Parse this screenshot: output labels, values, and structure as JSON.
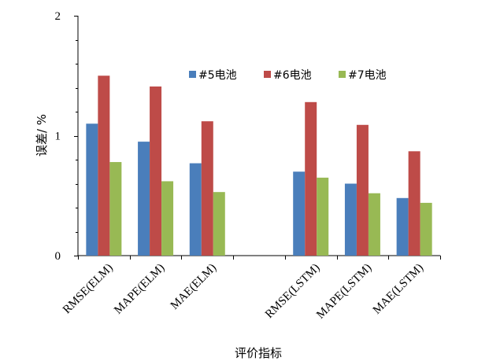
{
  "chart_data": {
    "type": "bar",
    "categories": [
      "RMSE(ELM)",
      "MAPE(ELM)",
      "MAE(ELM)",
      "",
      "RMSE(LSTM)",
      "MAPE(LSTM)",
      "MAE(LSTM)"
    ],
    "series": [
      {
        "name": "#5电池",
        "color": "#4a7ebb",
        "values": [
          1.1,
          0.95,
          0.77,
          null,
          0.7,
          0.6,
          0.48
        ]
      },
      {
        "name": "#6电池",
        "color": "#be4b48",
        "values": [
          1.5,
          1.41,
          1.12,
          null,
          1.28,
          1.09,
          0.87
        ]
      },
      {
        "name": "#7电池",
        "color": "#98b954",
        "values": [
          0.78,
          0.62,
          0.53,
          null,
          0.65,
          0.52,
          0.44
        ]
      }
    ],
    "xlabel": "评价指标",
    "ylabel": "误差/ %",
    "ylim": [
      0,
      2
    ],
    "yticks": [
      0,
      1,
      2
    ],
    "legend": "top-right",
    "grid": false
  }
}
